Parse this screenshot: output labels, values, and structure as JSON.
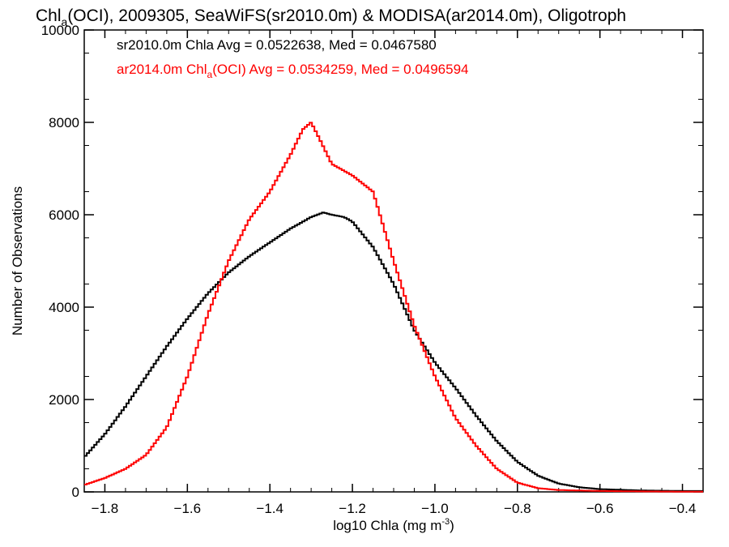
{
  "chart_data": {
    "type": "line",
    "title": {
      "pre": "Chl",
      "sub": "a",
      "post": "(OCI), 2009305, SeaWiFS(sr2010.0m) & MODISA(ar2014.0m), Oligotroph"
    },
    "xlabel": {
      "pre": "log10 Chla (mg m",
      "sup": "-3",
      "post": ")"
    },
    "ylabel": "Number of Observations",
    "xlim": [
      -1.85,
      -0.35
    ],
    "ylim": [
      0,
      10000
    ],
    "x_ticks": [
      -1.8,
      -1.6,
      -1.4,
      -1.2,
      -1.0,
      -0.8,
      -0.6,
      -0.4
    ],
    "x_tick_labels": [
      "−1.8",
      "−1.6",
      "−1.4",
      "−1.2",
      "−1.0",
      "−0.8",
      "−0.6",
      "−0.4"
    ],
    "y_ticks": [
      0,
      2000,
      4000,
      6000,
      8000,
      10000
    ],
    "y_tick_labels": [
      "0",
      "2000",
      "4000",
      "6000",
      "8000",
      "10000"
    ],
    "grid": false,
    "legend_position": "top-left",
    "series": [
      {
        "label_plain": "sr2010.0m Chla Avg = 0.0522638, Med = 0.0467580",
        "color": "#000000",
        "x": [
          -1.85,
          -1.8,
          -1.75,
          -1.7,
          -1.65,
          -1.6,
          -1.55,
          -1.5,
          -1.45,
          -1.4,
          -1.35,
          -1.3,
          -1.27,
          -1.25,
          -1.22,
          -1.2,
          -1.15,
          -1.1,
          -1.05,
          -1.0,
          -0.95,
          -0.9,
          -0.85,
          -0.8,
          -0.75,
          -0.7,
          -0.65,
          -0.6,
          -0.5,
          -0.4,
          -0.35
        ],
        "y": [
          750,
          1250,
          1850,
          2500,
          3150,
          3750,
          4300,
          4750,
          5100,
          5400,
          5700,
          5950,
          6050,
          6000,
          5950,
          5850,
          5300,
          4500,
          3500,
          2800,
          2250,
          1650,
          1100,
          650,
          350,
          180,
          100,
          60,
          30,
          20,
          20
        ]
      },
      {
        "label_pre": "ar2014.0m Chl",
        "label_sub": "a",
        "label_post": "(OCI) Avg = 0.0534259, Med = 0.0496594",
        "color": "#ff0000",
        "x": [
          -1.85,
          -1.8,
          -1.75,
          -1.7,
          -1.65,
          -1.6,
          -1.55,
          -1.5,
          -1.45,
          -1.4,
          -1.35,
          -1.32,
          -1.3,
          -1.28,
          -1.25,
          -1.22,
          -1.2,
          -1.15,
          -1.1,
          -1.05,
          -1.0,
          -0.95,
          -0.9,
          -0.85,
          -0.8,
          -0.75,
          -0.7,
          -0.6,
          -0.5,
          -0.4,
          -0.35
        ],
        "y": [
          150,
          300,
          500,
          800,
          1400,
          2500,
          3850,
          5000,
          5900,
          6500,
          7300,
          7850,
          8000,
          7650,
          7100,
          6950,
          6850,
          6500,
          5000,
          3600,
          2500,
          1600,
          1000,
          500,
          200,
          80,
          40,
          20,
          10,
          5,
          5
        ]
      }
    ]
  }
}
